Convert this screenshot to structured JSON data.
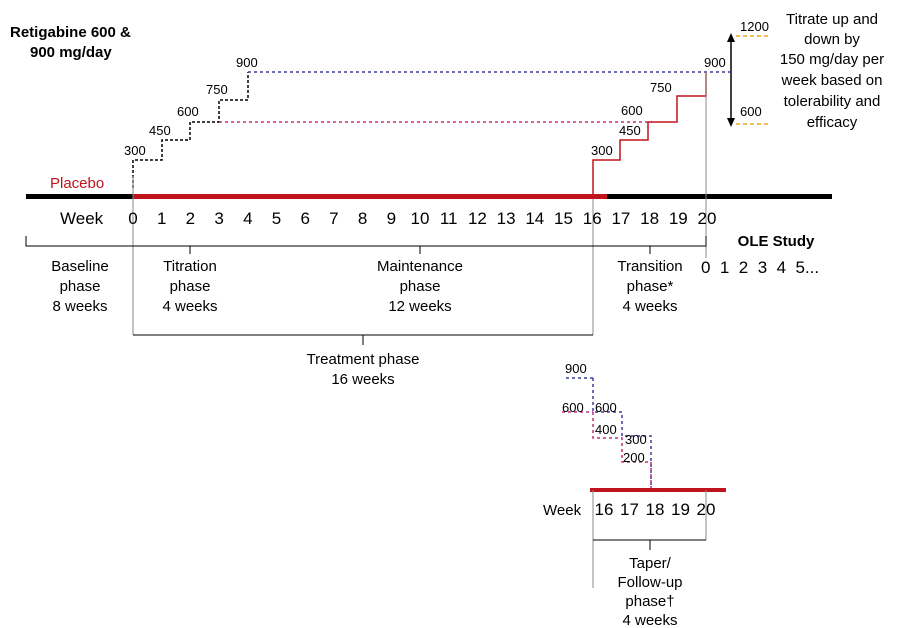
{
  "title": [
    "Retigabine 600 &",
    "900 mg/day"
  ],
  "placebo_label": "Placebo",
  "note": [
    "Titrate up and",
    "down by",
    "150 mg/day per",
    "week based on",
    "tolerability and",
    "efficacy"
  ],
  "dose_range": {
    "upper": "1200",
    "lower": "600"
  },
  "week_label": "Week",
  "weeks": [
    "0",
    "1",
    "2",
    "3",
    "4",
    "5",
    "6",
    "7",
    "8",
    "9",
    "10",
    "11",
    "12",
    "13",
    "14",
    "15",
    "16",
    "17",
    "18",
    "19",
    "20"
  ],
  "titration_steps": [
    "300",
    "450",
    "600",
    "750",
    "900"
  ],
  "transition_steps": [
    "300",
    "450",
    "600",
    "750",
    "900"
  ],
  "ole": {
    "title": "OLE Study",
    "weeks": "0  1  2  3  4  5..."
  },
  "phases": {
    "baseline": [
      "Baseline",
      "phase",
      "8 weeks"
    ],
    "titration": [
      "Titration",
      "phase",
      "4 weeks"
    ],
    "maintenance": [
      "Maintenance",
      "phase",
      "12 weeks"
    ],
    "transition": [
      "Transition",
      "phase*",
      "4 weeks"
    ],
    "treatment": [
      "Treatment phase",
      "16 weeks"
    ]
  },
  "taper": {
    "doses": [
      "900",
      "600",
      "600",
      "400",
      "300",
      "200"
    ],
    "weeks": [
      "16",
      "17",
      "18",
      "19",
      "20"
    ],
    "phase": [
      "Taper/",
      "Follow-up",
      "phase†",
      "4 weeks"
    ]
  },
  "colors": {
    "placebo": "#c0141c",
    "dose_900": "#3a3f9c",
    "dose_600": "#c4307a",
    "range": "#e8a820",
    "axis": "#000000",
    "guide": "#8a8a8a"
  }
}
